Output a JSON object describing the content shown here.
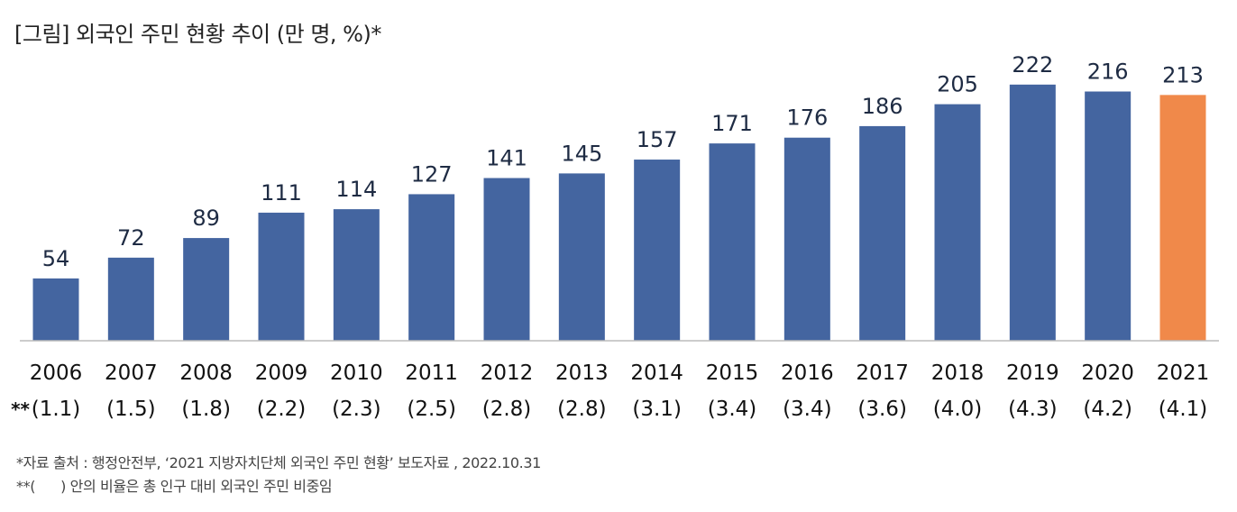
{
  "chart_data": {
    "type": "bar",
    "title": "[그림] 외국인 주민 현황 추이 (만 명, %)*",
    "categories": [
      "2006",
      "2007",
      "2008",
      "2009",
      "2010",
      "2011",
      "2012",
      "2013",
      "2014",
      "2015",
      "2016",
      "2017",
      "2018",
      "2019",
      "2020",
      "2021"
    ],
    "values": [
      54,
      72,
      89,
      111,
      114,
      127,
      141,
      145,
      157,
      171,
      176,
      186,
      205,
      222,
      216,
      213
    ],
    "ratios": [
      "(1.1)",
      "(1.5)",
      "(1.8)",
      "(2.2)",
      "(2.3)",
      "(2.5)",
      "(2.8)",
      "(2.8)",
      "(3.1)",
      "(3.4)",
      "(3.4)",
      "(3.6)",
      "(4.0)",
      "(4.3)",
      "(4.2)",
      "(4.1)"
    ],
    "ratio_prefix": "**",
    "xlabel": "",
    "ylabel": "",
    "ylim": [
      0,
      230
    ],
    "grid": false,
    "colors": {
      "default": "#4465a0",
      "highlight": "#f0894a",
      "label": "#1e2b43"
    },
    "highlight_index": 15
  },
  "notes": [
    "*자료 출처 : 행정안전부, ‘2021 지방자치단체 외국인 주민 현황’ 보도자료 , 2022.10.31",
    "**(      ) 안의 비율은 총 인구 대비 외국인 주민 비중임"
  ]
}
